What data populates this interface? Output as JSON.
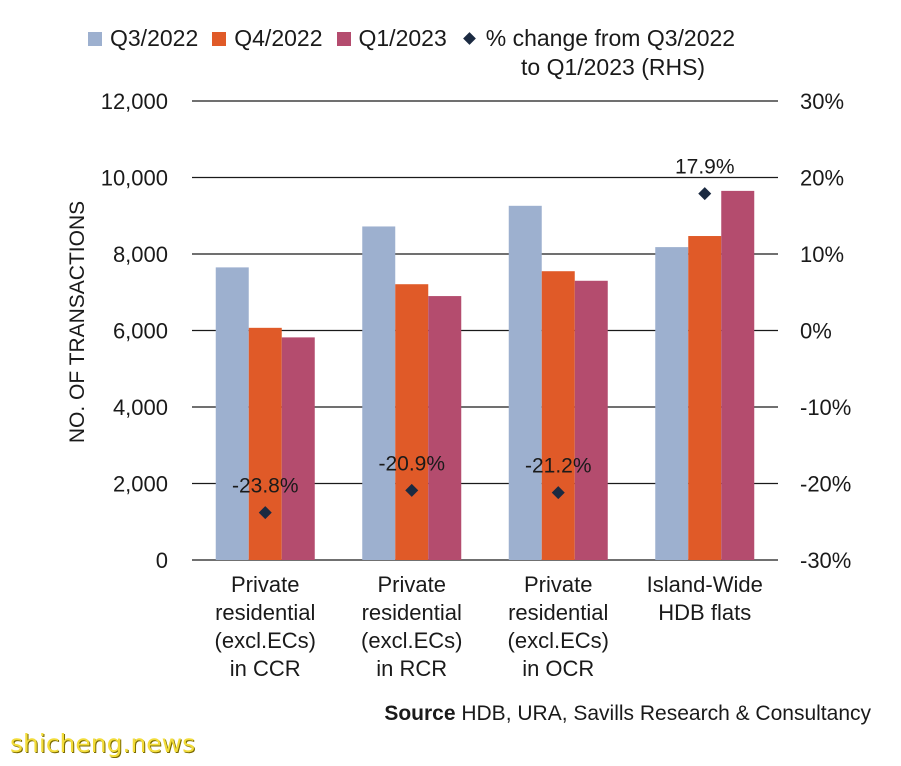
{
  "chart_data": {
    "type": "bar",
    "categories": [
      [
        "Private",
        "residential",
        "(excl.ECs)",
        "in CCR"
      ],
      [
        "Private",
        "residential",
        "(excl.ECs)",
        "in RCR"
      ],
      [
        "Private",
        "residential",
        "(excl.ECs)",
        "in OCR"
      ],
      [
        "Island-Wide",
        "HDB flats"
      ]
    ],
    "series": [
      {
        "name": "Q3/2022",
        "color": "#9db0cf",
        "values": [
          7650,
          8720,
          9260,
          8180
        ]
      },
      {
        "name": "Q4/2022",
        "color": "#e05a28",
        "values": [
          6070,
          7210,
          7550,
          8470
        ]
      },
      {
        "name": "Q1/2023",
        "color": "#b44c6e",
        "values": [
          5820,
          6900,
          7300,
          9650
        ]
      }
    ],
    "secondary_series": {
      "name_line1": "% change from Q3/2022",
      "name_line2": "to Q1/2023 (RHS)",
      "marker": "diamond",
      "color": "#1b2a41",
      "values": [
        -23.8,
        -20.9,
        -21.2,
        17.9
      ],
      "labels": [
        "-23.8%",
        "-20.9%",
        "-21.2%",
        "17.9%"
      ]
    },
    "ylabel": "NO. OF TRANSACTIONS",
    "ylim": [
      0,
      12000
    ],
    "y_ticks": [
      0,
      2000,
      4000,
      6000,
      8000,
      10000,
      12000
    ],
    "y_tick_labels": [
      "0",
      "2,000",
      "4,000",
      "6,000",
      "8,000",
      "10,000",
      "12,000"
    ],
    "y2lim": [
      -30,
      30
    ],
    "y2_ticks": [
      -30,
      -20,
      -10,
      0,
      10,
      20,
      30
    ],
    "y2_tick_labels": [
      "-30%",
      "-20%",
      "-10%",
      "0%",
      "10%",
      "20%",
      "30%"
    ],
    "grid": true,
    "legend_position": "top"
  },
  "source": {
    "label": "Source",
    "text": " HDB, URA, Savills Research & Consultancy"
  },
  "watermark": "shicheng.news"
}
